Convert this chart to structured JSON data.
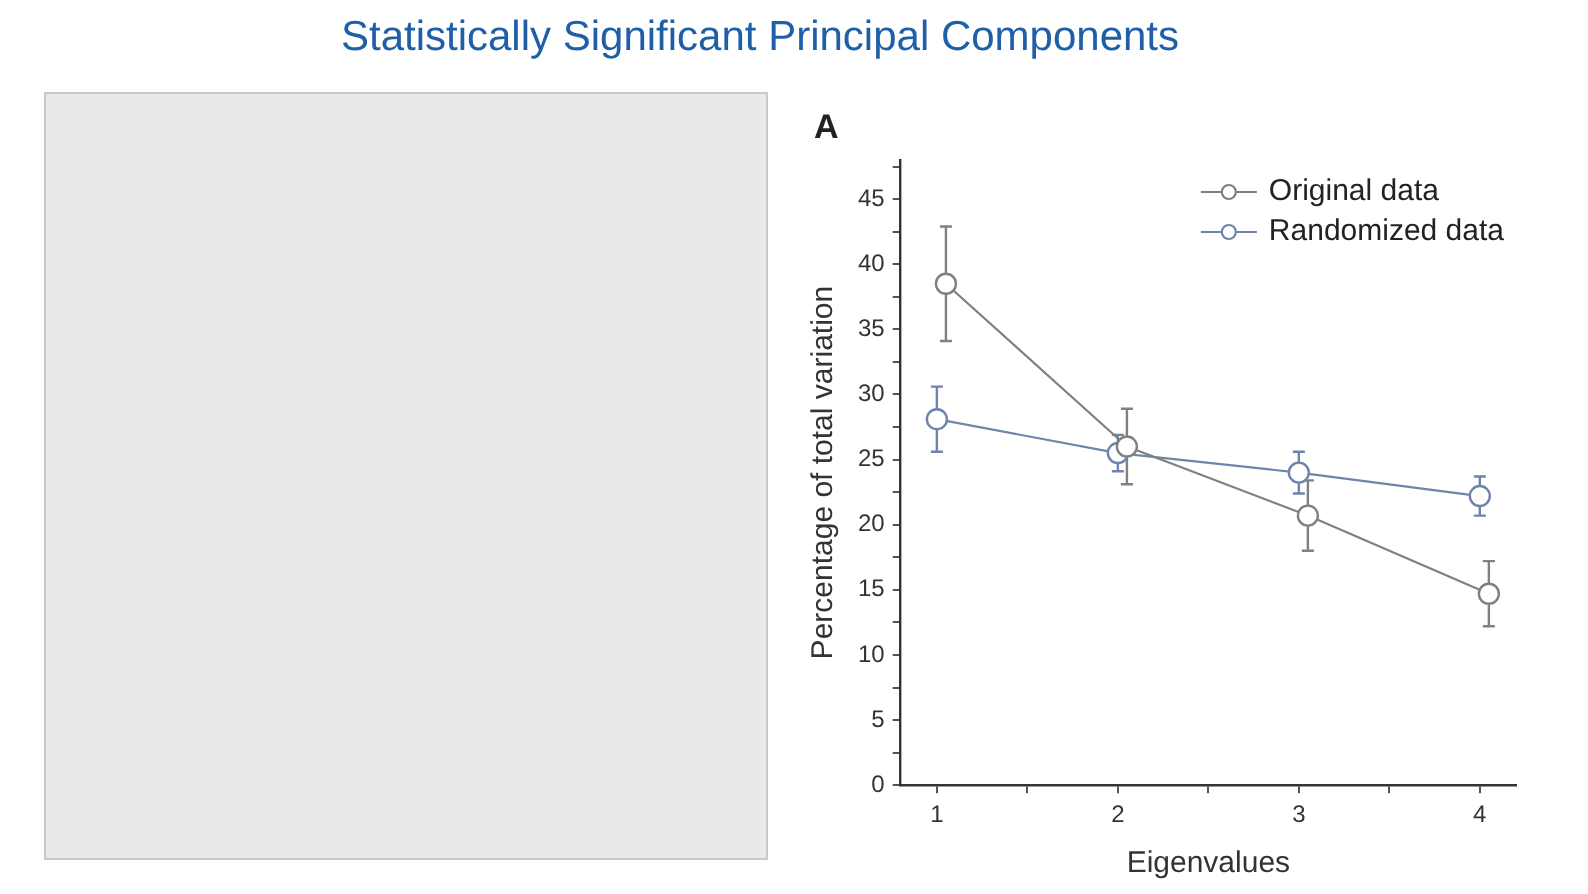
{
  "chart_data": {
    "type": "line",
    "title": "Statistically Significant Principal Components",
    "xlabel": "Eigenvalues",
    "ylabel": "Percentage of total variation",
    "annotations": [
      "A"
    ],
    "series": [
      {
        "name": "Original data",
        "color": "#808080",
        "x": [
          1.05,
          2.05,
          3.05,
          4.05
        ],
        "values": [
          38.5,
          26.0,
          20.7,
          14.7
        ],
        "errors": [
          4.4,
          2.9,
          2.7,
          2.5
        ]
      },
      {
        "name": "Randomized data",
        "color": "#6e84aa",
        "x": [
          1,
          2,
          3,
          4
        ],
        "values": [
          28.1,
          25.5,
          24.0,
          22.2
        ],
        "errors": [
          2.5,
          1.4,
          1.6,
          1.5
        ]
      }
    ],
    "xlim": [
      0.8,
      4.2
    ],
    "xticks": [
      1,
      {
        "value": 1.5,
        "label": null
      },
      2,
      {
        "value": 2.5,
        "label": null
      },
      3,
      {
        "value": 3.5,
        "label": null
      },
      4
    ],
    "ylim": [
      0,
      48
    ],
    "yticks": [
      0,
      {
        "value": 2.5,
        "label": null
      },
      5,
      {
        "value": 7.5,
        "label": null
      },
      10,
      {
        "value": 12.5,
        "label": null
      },
      15,
      {
        "value": 17.5,
        "label": null
      },
      20,
      {
        "value": 22.5,
        "label": null
      },
      25,
      {
        "value": 27.5,
        "label": null
      },
      30,
      {
        "value": 32.5,
        "label": null
      },
      35,
      {
        "value": 37.5,
        "label": null
      },
      40,
      {
        "value": 42.5,
        "label": null
      },
      45,
      {
        "value": 47.5,
        "label": null
      }
    ],
    "legend": "top right",
    "marker": "circle",
    "line_style": "solid",
    "grid": false
  }
}
